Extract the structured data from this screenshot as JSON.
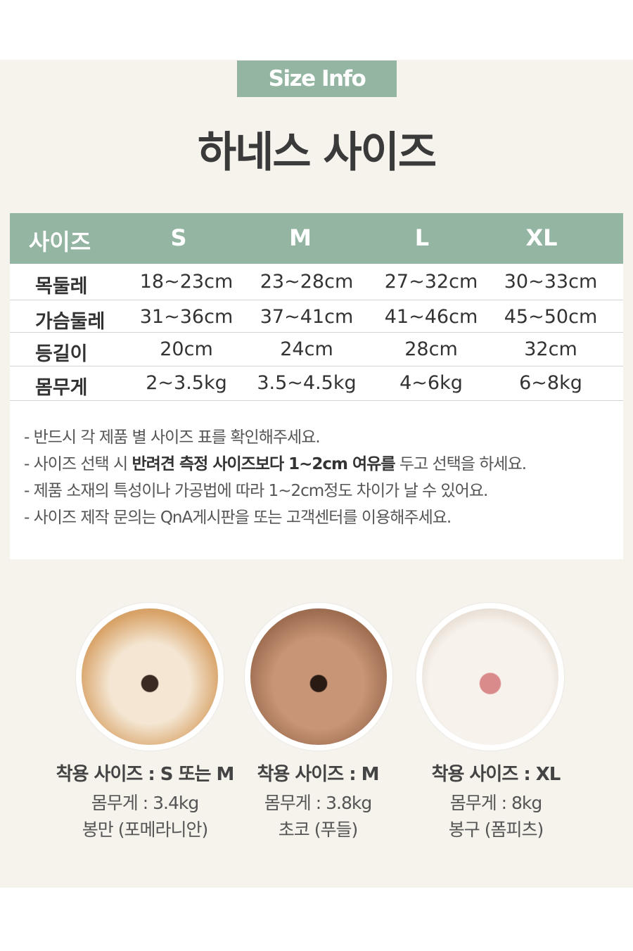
{
  "badge": "Size Info",
  "title": "하네스 사이즈",
  "table": {
    "headers": [
      "사이즈",
      "S",
      "M",
      "L",
      "XL"
    ],
    "rows": [
      [
        "목둘레",
        "18~23cm",
        "23~28cm",
        "27~32cm",
        "30~33cm"
      ],
      [
        "가슴둘레",
        "31~36cm",
        "37~41cm",
        "41~46cm",
        "45~50cm"
      ],
      [
        "등길이",
        "20cm",
        "24cm",
        "28cm",
        "32cm"
      ],
      [
        "몸무게",
        "2~3.5kg",
        "3.5~4.5kg",
        "4~6kg",
        "6~8kg"
      ]
    ]
  },
  "notes": {
    "n1": "- 반드시 각 제품 별 사이즈 표를 확인해주세요.",
    "n2a": "- 사이즈 선택 시 ",
    "n2b": "반려견 측정 사이즈보다 1~2cm 여유를",
    "n2c": " 두고 선택을 하세요.",
    "n3": "- 제품 소재의 특성이나 가공법에 따라 1~2cm정도 차이가 날 수 있어요.",
    "n4": "- 사이즈 제작 문의는 QnA게시판을 또는 고객센터를 이용해주세요."
  },
  "dogs": [
    {
      "size": "착용 사이즈 : S 또는 M",
      "weight": "몸무게 : 3.4kg",
      "name": "봉만 (포메라니안)"
    },
    {
      "size": "착용 사이즈 : M",
      "weight": "몸무게 : 3.8kg",
      "name": "초코 (푸들)"
    },
    {
      "size": "착용 사이즈 : XL",
      "weight": "몸무게 : 8kg",
      "name": "봉구 (폼피츠)"
    }
  ],
  "colors": {
    "accent": "#93b5a2",
    "background": "#f6f2ec"
  }
}
